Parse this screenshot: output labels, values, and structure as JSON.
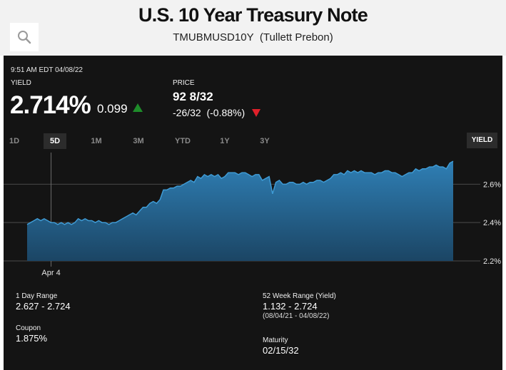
{
  "header": {
    "title": "U.S. 10 Year Treasury Note",
    "subtitle": "TMUBMUSD10Y  (Tullett Prebon)"
  },
  "quote": {
    "timestamp": "9:51 AM EDT 04/08/22",
    "yield_label": "YIELD",
    "yield_value": "2.714%",
    "yield_change": "0.099",
    "price_label": "PRICE",
    "price_value": "92 8/32",
    "price_change": "-26/32  (-0.88%)"
  },
  "range_tabs": [
    {
      "label": "1D"
    },
    {
      "label": "5D"
    },
    {
      "label": "1M"
    },
    {
      "label": "3M"
    },
    {
      "label": "YTD"
    },
    {
      "label": "1Y"
    },
    {
      "label": "3Y"
    }
  ],
  "mode_tab": "YIELD",
  "colors": {
    "up": "#1e8c2a",
    "down": "#e0202a",
    "line": "#3f9bd5",
    "fill_top": "#2f7fb5",
    "fill_bottom": "#1b4564",
    "panel": "#141414"
  },
  "chart_data": {
    "type": "area",
    "y_ticks": [
      "2.6%",
      "2.4%",
      "2.2%"
    ],
    "x_ticks": [
      "Apr 4"
    ],
    "ylim": [
      2.2,
      2.75
    ],
    "y_tick_values": [
      2.6,
      2.4,
      2.2
    ],
    "x_tick_index": 2,
    "grid": true,
    "series": [
      {
        "values": [
          2.39,
          2.4,
          2.41,
          2.42,
          2.41,
          2.42,
          2.41,
          2.4,
          2.4,
          2.39,
          2.4,
          2.39,
          2.4,
          2.39,
          2.4,
          2.42,
          2.41,
          2.42,
          2.41,
          2.41,
          2.4,
          2.41,
          2.4,
          2.4,
          2.39,
          2.4,
          2.4,
          2.41,
          2.42,
          2.43,
          2.44,
          2.45,
          2.44,
          2.46,
          2.48,
          2.48,
          2.5,
          2.51,
          2.5,
          2.52,
          2.57,
          2.57,
          2.58,
          2.58,
          2.59,
          2.59,
          2.6,
          2.61,
          2.62,
          2.61,
          2.64,
          2.63,
          2.65,
          2.64,
          2.65,
          2.64,
          2.65,
          2.63,
          2.64,
          2.66,
          2.66,
          2.66,
          2.65,
          2.66,
          2.66,
          2.65,
          2.64,
          2.65,
          2.65,
          2.62,
          2.63,
          2.64,
          2.55,
          2.61,
          2.62,
          2.6,
          2.6,
          2.61,
          2.61,
          2.6,
          2.6,
          2.61,
          2.6,
          2.61,
          2.61,
          2.62,
          2.62,
          2.61,
          2.62,
          2.63,
          2.65,
          2.65,
          2.66,
          2.65,
          2.67,
          2.66,
          2.67,
          2.66,
          2.67,
          2.66,
          2.66,
          2.66,
          2.65,
          2.66,
          2.66,
          2.67,
          2.67,
          2.66,
          2.66,
          2.65,
          2.64,
          2.65,
          2.66,
          2.66,
          2.68,
          2.67,
          2.68,
          2.68,
          2.69,
          2.69,
          2.7,
          2.69,
          2.69,
          2.68,
          2.71,
          2.72
        ]
      }
    ]
  },
  "stats": {
    "day_range_label": "1 Day Range",
    "day_range_value": "2.627 - 2.724",
    "week52_label": "52 Week Range (Yield)",
    "week52_value": "1.132 - 2.724",
    "week52_dates": "(08/04/21 - 04/08/22)",
    "coupon_label": "Coupon",
    "coupon_value": "1.875%",
    "maturity_label": "Maturity",
    "maturity_value": "02/15/32"
  }
}
